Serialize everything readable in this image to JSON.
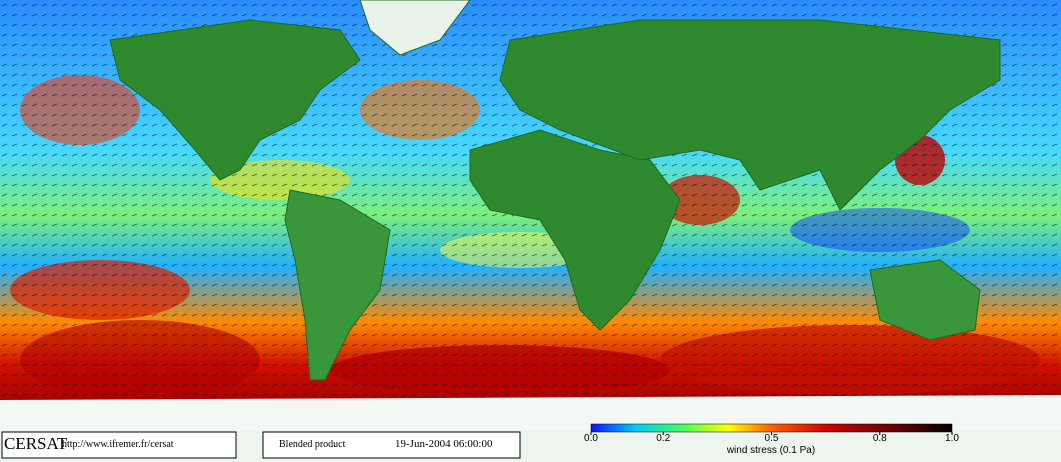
{
  "logo": "CERSAT",
  "url": "http://www.ifremer.fr/cersat",
  "product": "Blended product",
  "timestamp": "19-Jun-2004 06:00:00",
  "colorbar": {
    "label": "wind stress (0.1 Pa)",
    "ticks": [
      {
        "value": 0,
        "label": "0.0"
      },
      {
        "value": 0.2,
        "label": "0.2"
      },
      {
        "value": 0.5,
        "label": "0.5"
      },
      {
        "value": 0.8,
        "label": "0.8"
      },
      {
        "value": 1,
        "label": "1.0"
      }
    ]
  }
}
